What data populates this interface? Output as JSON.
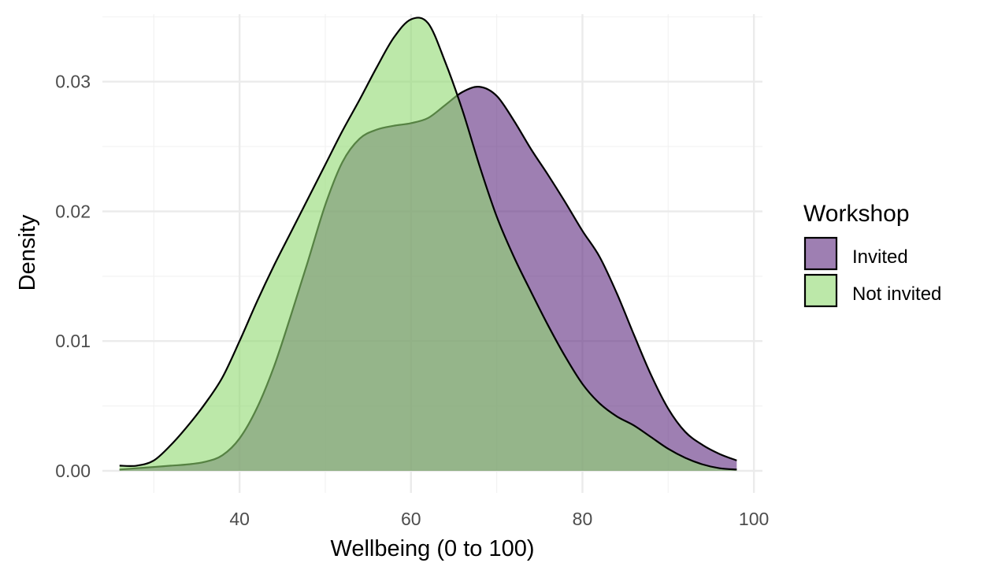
{
  "chart_data": {
    "type": "area",
    "subtype": "density",
    "title": "",
    "xlabel": "Wellbeing (0 to 100)",
    "ylabel": "Density",
    "xlim": [
      24,
      101
    ],
    "ylim": [
      -0.0017,
      0.0352
    ],
    "x_ticks": [
      40,
      60,
      80,
      100
    ],
    "y_ticks": [
      0.0,
      0.01,
      0.02,
      0.03
    ],
    "x_tick_labels": [
      "40",
      "60",
      "80",
      "100"
    ],
    "y_tick_labels": [
      "0.00",
      "0.01",
      "0.02",
      "0.03"
    ],
    "grid": true,
    "legend": {
      "title": "Workshop",
      "position": "right"
    },
    "fill_alpha": 0.6,
    "series": [
      {
        "name": "Invited",
        "color": "#5E2A7E",
        "x": [
          26,
          28,
          30,
          32,
          34,
          36,
          38,
          40,
          42,
          44,
          46,
          48,
          50,
          52,
          54,
          56,
          58,
          60,
          62,
          64,
          66,
          68,
          70,
          72,
          74,
          76,
          78,
          80,
          82,
          84,
          86,
          88,
          90,
          92,
          94,
          96,
          98
        ],
        "values": [
          0.0001,
          0.0002,
          0.0003,
          0.0004,
          0.0005,
          0.0007,
          0.0012,
          0.0025,
          0.0048,
          0.008,
          0.012,
          0.0162,
          0.0205,
          0.0238,
          0.0256,
          0.0263,
          0.0266,
          0.0268,
          0.0272,
          0.0282,
          0.0292,
          0.0296,
          0.0289,
          0.027,
          0.0248,
          0.0228,
          0.0207,
          0.0185,
          0.0165,
          0.0137,
          0.0105,
          0.0074,
          0.0048,
          0.003,
          0.002,
          0.0013,
          0.0008
        ]
      },
      {
        "name": "Not invited",
        "color": "#90D870",
        "x": [
          26,
          28,
          30,
          32,
          34,
          36,
          38,
          40,
          42,
          44,
          46,
          48,
          50,
          52,
          54,
          56,
          58,
          60,
          62,
          64,
          66,
          68,
          70,
          72,
          74,
          76,
          78,
          80,
          82,
          84,
          86,
          88,
          90,
          92,
          94,
          96,
          98
        ],
        "values": [
          0.0004,
          0.0004,
          0.0008,
          0.002,
          0.0035,
          0.0052,
          0.0072,
          0.01,
          0.013,
          0.0158,
          0.0184,
          0.021,
          0.0236,
          0.0262,
          0.0286,
          0.0311,
          0.0334,
          0.0348,
          0.0345,
          0.0315,
          0.0278,
          0.0235,
          0.0196,
          0.0165,
          0.0138,
          0.0112,
          0.0088,
          0.0067,
          0.0052,
          0.0042,
          0.0035,
          0.0026,
          0.0017,
          0.001,
          0.0005,
          0.0002,
          0.0001
        ]
      }
    ]
  }
}
